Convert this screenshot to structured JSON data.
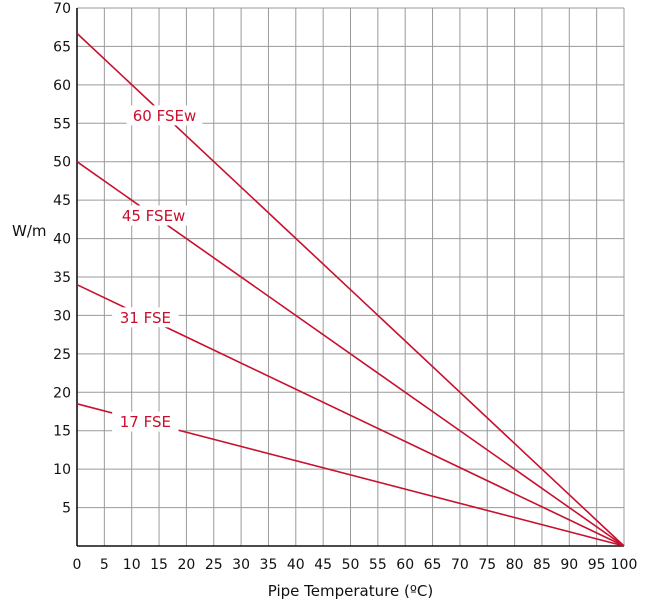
{
  "chart_data": {
    "type": "line",
    "title": "",
    "xlabel": "Pipe Temperature (ºC)",
    "ylabel": "W/m",
    "xlim": [
      0,
      100
    ],
    "ylim": [
      0,
      70
    ],
    "xticks": [
      0,
      5,
      10,
      15,
      20,
      25,
      30,
      35,
      40,
      45,
      50,
      55,
      60,
      65,
      70,
      75,
      80,
      85,
      90,
      95,
      100
    ],
    "yticks": [
      5,
      10,
      15,
      20,
      25,
      30,
      35,
      40,
      45,
      50,
      55,
      60,
      65,
      70
    ],
    "grid": true,
    "line_color": "#c8102e",
    "grid_color": "#9a9a9a",
    "series": [
      {
        "name": "60 FSEw",
        "x": [
          0,
          100
        ],
        "y": [
          66.7,
          0
        ]
      },
      {
        "name": "45 FSEw",
        "x": [
          0,
          100
        ],
        "y": [
          50,
          0
        ]
      },
      {
        "name": "31 FSE",
        "x": [
          0,
          100
        ],
        "y": [
          34,
          0
        ]
      },
      {
        "name": "17 FSE",
        "x": [
          0,
          100
        ],
        "y": [
          18.5,
          0
        ]
      }
    ]
  }
}
